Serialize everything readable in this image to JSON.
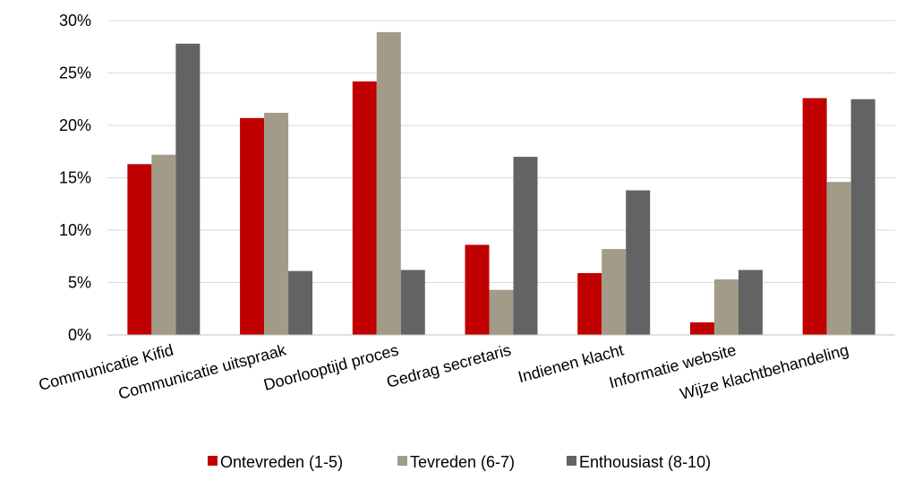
{
  "chart_data": {
    "type": "bar",
    "categories": [
      "Communicatie Kifid",
      "Communicatie uitspraak",
      "Doorlooptijd proces",
      "Gedrag secretaris",
      "Indienen klacht",
      "Informatie website",
      "Wijze klachtbehandeling"
    ],
    "series": [
      {
        "name": "Ontevreden (1-5)",
        "color": "#C00000",
        "values": [
          16.3,
          20.7,
          24.2,
          8.6,
          5.9,
          1.2,
          22.6
        ]
      },
      {
        "name": "Tevreden (6-7)",
        "color": "#A39B89",
        "values": [
          17.2,
          21.2,
          28.9,
          4.3,
          8.2,
          5.3,
          14.6
        ]
      },
      {
        "name": "Enthousiast (8-10)",
        "color": "#636363",
        "values": [
          27.8,
          6.1,
          6.2,
          17.0,
          13.8,
          6.2,
          22.5
        ]
      }
    ],
    "yticks": [
      "0%",
      "5%",
      "10%",
      "15%",
      "20%",
      "25%",
      "30%"
    ],
    "ylim": [
      0,
      30
    ],
    "title": "",
    "xlabel": "",
    "ylabel": "",
    "grid": true,
    "legend_position": "bottom"
  }
}
